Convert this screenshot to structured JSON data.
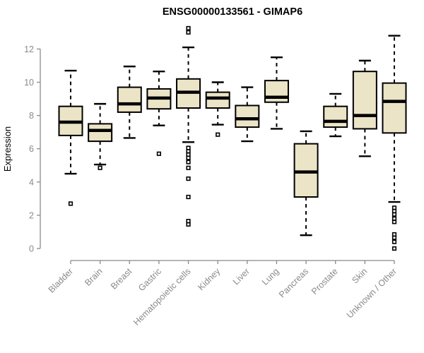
{
  "chart_data": {
    "type": "boxplot",
    "title": "ENSG00000133561 - GIMAP6",
    "ylabel": "Expression",
    "xlabel": "",
    "ylim": [
      0,
      12
    ],
    "yticks": [
      0,
      2,
      4,
      6,
      8,
      10,
      12
    ],
    "grid": "off",
    "categories": [
      "Bladder",
      "Brain",
      "Breast",
      "Gastric",
      "Hematopoietic cells",
      "Kidney",
      "Liver",
      "Lung",
      "Pancreas",
      "Prostate",
      "Skin",
      "Unknown / Other"
    ],
    "series": [
      {
        "category": "Bladder",
        "whisker_low": 4.5,
        "q1": 6.8,
        "median": 7.6,
        "q3": 8.55,
        "whisker_high": 10.7,
        "outliers": [
          2.7
        ]
      },
      {
        "category": "Brain",
        "whisker_low": 5.05,
        "q1": 6.45,
        "median": 7.1,
        "q3": 7.5,
        "whisker_high": 8.7,
        "outliers": [
          4.85
        ]
      },
      {
        "category": "Breast",
        "whisker_low": 6.65,
        "q1": 8.2,
        "median": 8.7,
        "q3": 9.7,
        "whisker_high": 10.95,
        "outliers": []
      },
      {
        "category": "Gastric",
        "whisker_low": 7.4,
        "q1": 8.4,
        "median": 9.05,
        "q3": 9.6,
        "whisker_high": 10.65,
        "outliers": [
          5.7
        ]
      },
      {
        "category": "Hematopoietic cells",
        "whisker_low": 6.4,
        "q1": 8.45,
        "median": 9.4,
        "q3": 10.2,
        "whisker_high": 12.1,
        "outliers": [
          13.25,
          13.0,
          6.05,
          5.85,
          5.65,
          5.45,
          5.2,
          4.85,
          4.2,
          3.1,
          1.65,
          1.45
        ]
      },
      {
        "category": "Kidney",
        "whisker_low": 7.45,
        "q1": 8.45,
        "median": 9.05,
        "q3": 9.4,
        "whisker_high": 10.0,
        "outliers": [
          6.85
        ]
      },
      {
        "category": "Liver",
        "whisker_low": 6.45,
        "q1": 7.3,
        "median": 7.8,
        "q3": 8.6,
        "whisker_high": 9.7,
        "outliers": []
      },
      {
        "category": "Lung",
        "whisker_low": 7.2,
        "q1": 8.8,
        "median": 9.1,
        "q3": 10.1,
        "whisker_high": 11.5,
        "outliers": []
      },
      {
        "category": "Pancreas",
        "whisker_low": 0.8,
        "q1": 3.1,
        "median": 4.6,
        "q3": 6.3,
        "whisker_high": 7.05,
        "outliers": []
      },
      {
        "category": "Prostate",
        "whisker_low": 6.75,
        "q1": 7.3,
        "median": 7.65,
        "q3": 8.55,
        "whisker_high": 9.3,
        "outliers": []
      },
      {
        "category": "Skin",
        "whisker_low": 5.55,
        "q1": 7.2,
        "median": 8.0,
        "q3": 10.65,
        "whisker_high": 11.3,
        "outliers": []
      },
      {
        "category": "Unknown / Other",
        "whisker_low": 2.8,
        "q1": 6.95,
        "median": 8.85,
        "q3": 9.95,
        "whisker_high": 12.8,
        "outliers": [
          2.45,
          2.25,
          2.05,
          1.8,
          1.6,
          0.85,
          0.65,
          0.4,
          0.0
        ]
      }
    ],
    "colors": {
      "box_fill": "#EBE4C6",
      "box_stroke": "#000000",
      "median": "#000000",
      "whisker": "#000000",
      "outlier_stroke": "#000000",
      "axis": "#8a8a8a",
      "tick_label": "#8a8a8a",
      "title": "#000000"
    },
    "legend": "none"
  }
}
